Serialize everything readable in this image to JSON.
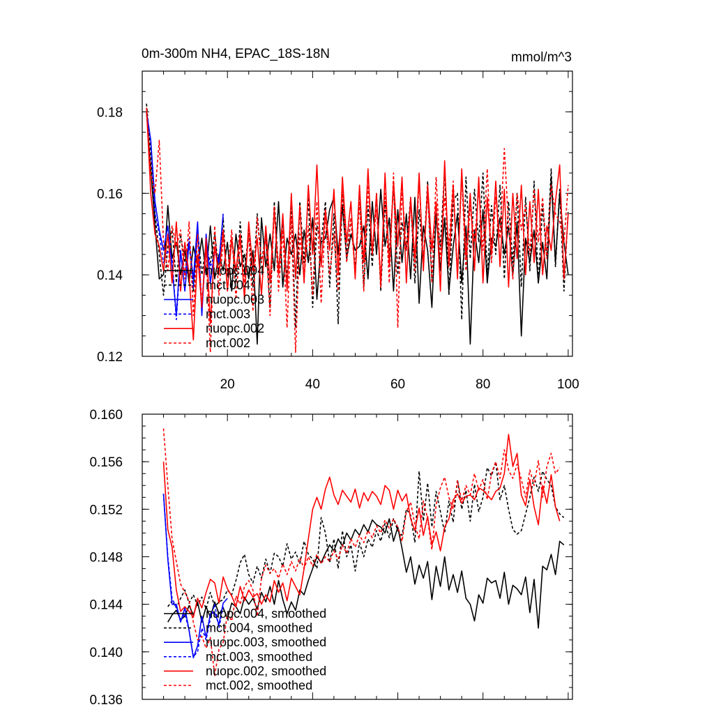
{
  "chart_data": [
    {
      "type": "line",
      "title": "0m-300m NH4, EPAC_18S-18N",
      "units": "mmol/m^3",
      "xlabel": "",
      "ylabel": "",
      "xlim": [
        0,
        101
      ],
      "ylim": [
        0.12,
        0.19
      ],
      "xticks": [
        20,
        40,
        60,
        80,
        100
      ],
      "xtick_labels": [
        "20",
        "40",
        "60",
        "80",
        "100"
      ],
      "yticks": [
        0.12,
        0.14,
        0.16,
        0.18
      ],
      "ytick_labels": [
        "0.12",
        "0.14",
        "0.16",
        "0.18"
      ],
      "legend_position": "bottom-left",
      "series": [
        {
          "name": "nuopc.004",
          "color": "#000000",
          "dash": "solid",
          "x_start": 1,
          "values": [
            0.18,
            0.166,
            0.152,
            0.139,
            0.14,
            0.157,
            0.144,
            0.148,
            0.14,
            0.146,
            0.138,
            0.147,
            0.142,
            0.149,
            0.14,
            0.152,
            0.139,
            0.145,
            0.141,
            0.148,
            0.136,
            0.15,
            0.142,
            0.145,
            0.139,
            0.146,
            0.123,
            0.154,
            0.142,
            0.15,
            0.141,
            0.158,
            0.137,
            0.149,
            0.145,
            0.15,
            0.14,
            0.151,
            0.143,
            0.154,
            0.134,
            0.148,
            0.149,
            0.156,
            0.159,
            0.145,
            0.157,
            0.144,
            0.15,
            0.146,
            0.147,
            0.152,
            0.139,
            0.158,
            0.145,
            0.161,
            0.147,
            0.154,
            0.136,
            0.156,
            0.143,
            0.155,
            0.139,
            0.159,
            0.133,
            0.152,
            0.146,
            0.132,
            0.155,
            0.141,
            0.154,
            0.136,
            0.147,
            0.155,
            0.138,
            0.152,
            0.123,
            0.151,
            0.143,
            0.156,
            0.138,
            0.149,
            0.147,
            0.154,
            0.145,
            0.152,
            0.14,
            0.153,
            0.125,
            0.149,
            0.143,
            0.151,
            0.138,
            0.148,
            0.139,
            0.164,
            0.143,
            0.16,
            0.148,
            0.14
          ]
        },
        {
          "name": "mct.004",
          "color": "#000000",
          "dash": "dashed",
          "x_start": 1,
          "values": [
            0.182,
            0.17,
            0.155,
            0.145,
            0.135,
            0.147,
            0.151,
            0.138,
            0.15,
            0.143,
            0.148,
            0.136,
            0.151,
            0.14,
            0.147,
            0.143,
            0.15,
            0.141,
            0.154,
            0.136,
            0.149,
            0.138,
            0.153,
            0.14,
            0.151,
            0.137,
            0.155,
            0.143,
            0.15,
            0.132,
            0.158,
            0.141,
            0.153,
            0.139,
            0.157,
            0.127,
            0.158,
            0.143,
            0.159,
            0.132,
            0.152,
            0.148,
            0.158,
            0.137,
            0.155,
            0.128,
            0.16,
            0.145,
            0.154,
            0.141,
            0.161,
            0.137,
            0.157,
            0.142,
            0.16,
            0.136,
            0.158,
            0.145,
            0.162,
            0.14,
            0.153,
            0.146,
            0.159,
            0.138,
            0.156,
            0.143,
            0.163,
            0.139,
            0.154,
            0.147,
            0.166,
            0.135,
            0.158,
            0.16,
            0.129,
            0.164,
            0.144,
            0.161,
            0.148,
            0.165,
            0.14,
            0.157,
            0.145,
            0.162,
            0.139,
            0.158,
            0.143,
            0.16,
            0.137,
            0.159,
            0.141,
            0.163,
            0.138,
            0.157,
            0.144,
            0.166,
            0.142,
            0.161,
            0.136,
            0.156
          ]
        },
        {
          "name": "nuopc.003",
          "color": "#0000ff",
          "dash": "solid",
          "x_start": 1,
          "values": [
            0.18,
            0.173,
            0.158,
            0.151,
            0.146,
            0.152,
            0.142,
            0.13,
            0.146,
            0.136,
            0.148,
            0.139,
            0.153,
            0.13,
            0.15,
            0.138,
            0.146,
            0.143,
            0.155
          ]
        },
        {
          "name": "mct.003",
          "color": "#0000ff",
          "dash": "dashed",
          "x_start": 1,
          "values": [
            0.18,
            0.173,
            0.155,
            0.15,
            0.143,
            0.146,
            0.144,
            0.129,
            0.145,
            0.14,
            0.149,
            0.137,
            0.151,
            0.132,
            0.147,
            0.142,
            0.145
          ]
        },
        {
          "name": "nuopc.002",
          "color": "#ff0000",
          "dash": "solid",
          "x_start": 1,
          "values": [
            0.181,
            0.16,
            0.15,
            0.147,
            0.141,
            0.15,
            0.138,
            0.153,
            0.136,
            0.148,
            0.14,
            0.124,
            0.145,
            0.132,
            0.149,
            0.128,
            0.147,
            0.14,
            0.151,
            0.136,
            0.149,
            0.141,
            0.15,
            0.134,
            0.153,
            0.141,
            0.149,
            0.135,
            0.152,
            0.138,
            0.156,
            0.14,
            0.155,
            0.136,
            0.16,
            0.139,
            0.157,
            0.138,
            0.162,
            0.145,
            0.167,
            0.142,
            0.156,
            0.146,
            0.161,
            0.14,
            0.164,
            0.148,
            0.158,
            0.139,
            0.162,
            0.143,
            0.166,
            0.145,
            0.16,
            0.137,
            0.165,
            0.142,
            0.163,
            0.147,
            0.164,
            0.138,
            0.159,
            0.144,
            0.165,
            0.141,
            0.162,
            0.146,
            0.158,
            0.136,
            0.168,
            0.142,
            0.162,
            0.139,
            0.166,
            0.144,
            0.16,
            0.141,
            0.164,
            0.138,
            0.159,
            0.145,
            0.163,
            0.142,
            0.161,
            0.137,
            0.16,
            0.144,
            0.162,
            0.14,
            0.158,
            0.143,
            0.161,
            0.14,
            0.152,
            0.146,
            0.158,
            0.167,
            0.139,
            0.155
          ]
        },
        {
          "name": "mct.002",
          "color": "#ff0000",
          "dash": "dashed",
          "x_start": 1,
          "values": [
            0.181,
            0.165,
            0.16,
            0.173,
            0.148,
            0.141,
            0.152,
            0.147,
            0.151,
            0.139,
            0.153,
            0.13,
            0.15,
            0.133,
            0.146,
            0.121,
            0.152,
            0.135,
            0.149,
            0.14,
            0.151,
            0.134,
            0.148,
            0.138,
            0.15,
            0.131,
            0.154,
            0.143,
            0.149,
            0.13,
            0.157,
            0.136,
            0.151,
            0.127,
            0.154,
            0.121,
            0.15,
            0.139,
            0.152,
            0.135,
            0.158,
            0.133,
            0.155,
            0.14,
            0.15,
            0.136,
            0.161,
            0.143,
            0.154,
            0.14,
            0.158,
            0.136,
            0.162,
            0.146,
            0.156,
            0.139,
            0.16,
            0.138,
            0.165,
            0.127,
            0.161,
            0.146,
            0.158,
            0.141,
            0.163,
            0.143,
            0.16,
            0.138,
            0.164,
            0.144,
            0.159,
            0.147,
            0.163,
            0.14,
            0.164,
            0.141,
            0.157,
            0.148,
            0.161,
            0.146,
            0.166,
            0.143,
            0.159,
            0.149,
            0.171,
            0.152,
            0.139,
            0.16,
            0.151,
            0.157,
            0.145,
            0.161,
            0.148,
            0.159,
            0.144,
            0.162,
            0.155,
            0.153,
            0.148,
            0.162
          ]
        }
      ]
    },
    {
      "type": "line",
      "title": "",
      "xlabel": "",
      "ylabel": "",
      "xlim": [
        0,
        101
      ],
      "ylim": [
        0.136,
        0.16
      ],
      "xticks": [
        20,
        40,
        60,
        80,
        100
      ],
      "xtick_labels": [],
      "yticks": [
        0.136,
        0.14,
        0.144,
        0.148,
        0.152,
        0.156,
        0.16
      ],
      "ytick_labels": [
        "0.136",
        "0.140",
        "0.144",
        "0.148",
        "0.152",
        "0.156",
        "0.160"
      ],
      "legend_position": "bottom-left",
      "series": [
        {
          "name": "nuopc.004, smoothed",
          "color": "#000000",
          "dash": "solid",
          "x_start": 6,
          "values": [
            0.1425,
            0.1431,
            0.1435,
            0.1427,
            0.143,
            0.1439,
            0.1431,
            0.1442,
            0.1425,
            0.1438,
            0.1429,
            0.1442,
            0.1432,
            0.1437,
            0.1428,
            0.1441,
            0.1438,
            0.1432,
            0.1446,
            0.144,
            0.1445,
            0.1436,
            0.145,
            0.1442,
            0.1455,
            0.144,
            0.146,
            0.1444,
            0.1432,
            0.1442,
            0.1435,
            0.1452,
            0.1448,
            0.146,
            0.147,
            0.148,
            0.1475,
            0.1483,
            0.149,
            0.1485,
            0.1495,
            0.1489,
            0.15,
            0.1494,
            0.1503,
            0.1498,
            0.1507,
            0.1501,
            0.1511,
            0.1507,
            0.1505,
            0.15,
            0.1512,
            0.1493,
            0.1505,
            0.1487,
            0.1467,
            0.148,
            0.1457,
            0.1473,
            0.1462,
            0.1476,
            0.1444,
            0.1472,
            0.1455,
            0.148,
            0.1452,
            0.1465,
            0.145,
            0.1468,
            0.1445,
            0.144,
            0.1426,
            0.1448,
            0.1441,
            0.1462,
            0.1458,
            0.146,
            0.1445,
            0.1467,
            0.144,
            0.1456,
            0.1453,
            0.1448,
            0.1463,
            0.1433,
            0.1461,
            0.142,
            0.1472,
            0.1469,
            0.1482,
            0.1465,
            0.1493,
            0.149
          ]
        },
        {
          "name": "mct.004, smoothed",
          "color": "#000000",
          "dash": "dashed",
          "x_start": 6,
          "values": [
            0.1438,
            0.1443,
            0.1437,
            0.1445,
            0.1452,
            0.1441,
            0.1448,
            0.1439,
            0.1446,
            0.1436,
            0.145,
            0.1438,
            0.1442,
            0.1444,
            0.1452,
            0.1448,
            0.146,
            0.1475,
            0.1482,
            0.1465,
            0.1458,
            0.1472,
            0.1462,
            0.1478,
            0.1466,
            0.1483,
            0.148,
            0.1472,
            0.1491,
            0.1478,
            0.1484,
            0.1474,
            0.1493,
            0.1482,
            0.1478,
            0.147,
            0.1513,
            0.15,
            0.1475,
            0.1495,
            0.147,
            0.1502,
            0.148,
            0.149,
            0.1468,
            0.1492,
            0.148,
            0.1495,
            0.1488,
            0.1502,
            0.1493,
            0.1508,
            0.1496,
            0.1512,
            0.1502,
            0.1498,
            0.152,
            0.1515,
            0.1492,
            0.1552,
            0.151,
            0.1542,
            0.1505,
            0.1535,
            0.1518,
            0.15,
            0.1527,
            0.1509,
            0.1545,
            0.152,
            0.1536,
            0.151,
            0.1541,
            0.1518,
            0.153,
            0.1555,
            0.1548,
            0.156,
            0.1528,
            0.154,
            0.152,
            0.1503,
            0.1499,
            0.1502,
            0.1516,
            0.153,
            0.1547,
            0.1535,
            0.1552,
            0.1545,
            0.154,
            0.1522,
            0.1516,
            0.1513
          ]
        },
        {
          "name": "nuopc.003, smoothed",
          "color": "#0000ff",
          "dash": "solid",
          "x_start": 5,
          "values": [
            0.1533,
            0.1478,
            0.144,
            0.144,
            0.1425,
            0.1437,
            0.1418,
            0.1395,
            0.1405,
            0.143,
            0.1412,
            0.1432,
            0.1433,
            0.1423,
            0.1441,
            0.1445
          ]
        },
        {
          "name": "mct.003, smoothed",
          "color": "#0000ff",
          "dash": "dashed",
          "x_start": 5,
          "values": [
            0.1533,
            0.148,
            0.1445,
            0.1437,
            0.1427,
            0.1432,
            0.1418,
            0.1396,
            0.14,
            0.142,
            0.141,
            0.1428,
            0.144,
            0.142,
            0.1438
          ]
        },
        {
          "name": "nuopc.002, smoothed",
          "color": "#ff0000",
          "dash": "solid",
          "x_start": 5,
          "values": [
            0.156,
            0.1503,
            0.1488,
            0.1452,
            0.1434,
            0.1438,
            0.1434,
            0.1429,
            0.1445,
            0.1437,
            0.145,
            0.1461,
            0.1458,
            0.1441,
            0.1463,
            0.1453,
            0.1447,
            0.1438,
            0.1455,
            0.1443,
            0.1452,
            0.1446,
            0.1449,
            0.144,
            0.1448,
            0.1442,
            0.146,
            0.145,
            0.1458,
            0.1443,
            0.1462,
            0.1455,
            0.1448,
            0.147,
            0.1495,
            0.152,
            0.153,
            0.152,
            0.1537,
            0.1547,
            0.1532,
            0.1524,
            0.1536,
            0.1531,
            0.1526,
            0.1537,
            0.1521,
            0.1534,
            0.1527,
            0.1535,
            0.1531,
            0.1524,
            0.154,
            0.1536,
            0.152,
            0.1536,
            0.1527,
            0.1533,
            0.1512,
            0.1502,
            0.1521,
            0.1498,
            0.1514,
            0.149,
            0.1501,
            0.1485,
            0.1505,
            0.1512,
            0.1528,
            0.1533,
            0.1525,
            0.1531,
            0.1532,
            0.1528,
            0.1538,
            0.1536,
            0.1532,
            0.1528,
            0.1535,
            0.1538,
            0.155,
            0.1583,
            0.1556,
            0.1567,
            0.1532,
            0.1523,
            0.1545,
            0.1522,
            0.1507,
            0.154,
            0.1525,
            0.1549,
            0.1522,
            0.151
          ]
        },
        {
          "name": "mct.002, smoothed",
          "color": "#ff0000",
          "dash": "dashed",
          "x_start": 5,
          "values": [
            0.1588,
            0.154,
            0.1495,
            0.1476,
            0.1457,
            0.145,
            0.1443,
            0.1425,
            0.141,
            0.1413,
            0.1403,
            0.1412,
            0.138,
            0.1402,
            0.1408,
            0.1432,
            0.1426,
            0.1447,
            0.144,
            0.1455,
            0.146,
            0.1452,
            0.143,
            0.1462,
            0.1473,
            0.1466,
            0.147,
            0.1462,
            0.1474,
            0.1465,
            0.1476,
            0.1468,
            0.1479,
            0.147,
            0.148,
            0.1472,
            0.1482,
            0.1474,
            0.148,
            0.1476,
            0.1485,
            0.1478,
            0.149,
            0.1483,
            0.1495,
            0.1488,
            0.1498,
            0.1492,
            0.1502,
            0.1496,
            0.1506,
            0.15,
            0.1511,
            0.1504,
            0.1512,
            0.1505,
            0.1493,
            0.1518,
            0.1526,
            0.1507,
            0.1495,
            0.1527,
            0.1512,
            0.1486,
            0.1524,
            0.1538,
            0.1547,
            0.153,
            0.152,
            0.1544,
            0.1527,
            0.154,
            0.1532,
            0.155,
            0.1536,
            0.1545,
            0.1528,
            0.155,
            0.156,
            0.1546,
            0.157,
            0.1553,
            0.1546,
            0.1558,
            0.1545,
            0.153,
            0.1553,
            0.154,
            0.1561,
            0.153,
            0.1556,
            0.1567,
            0.155,
            0.1555
          ]
        }
      ]
    }
  ]
}
